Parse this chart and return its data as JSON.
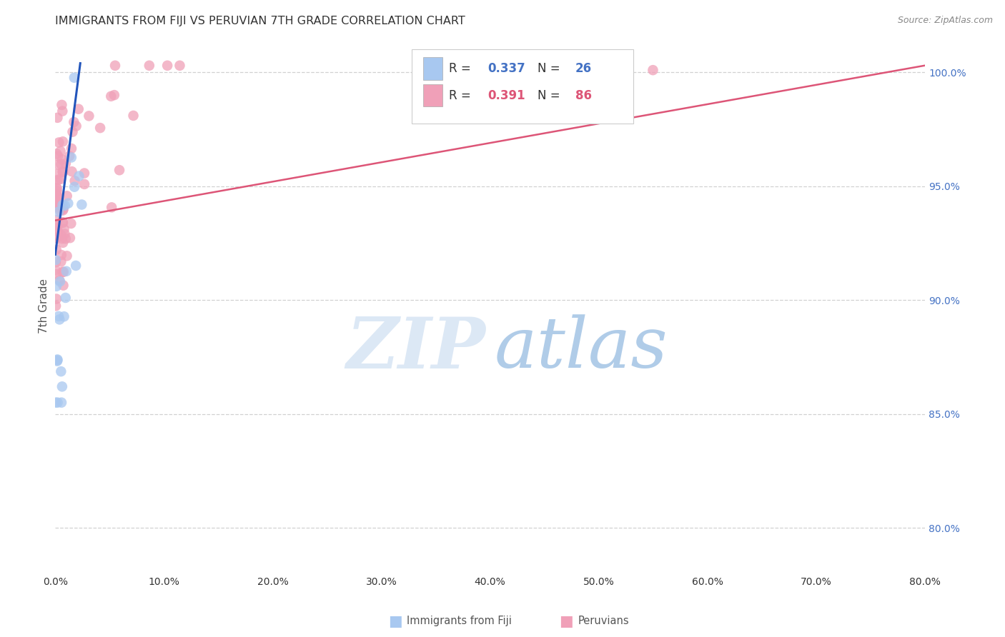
{
  "title": "IMMIGRANTS FROM FIJI VS PERUVIAN 7TH GRADE CORRELATION CHART",
  "source": "Source: ZipAtlas.com",
  "ylabel": "7th Grade",
  "ylabel_right_positions": [
    1.0,
    0.95,
    0.9,
    0.85,
    0.8
  ],
  "x_min": 0.0,
  "x_max": 0.8,
  "y_min": 0.78,
  "y_max": 1.015,
  "fiji_R": 0.337,
  "fiji_N": 26,
  "peru_R": 0.391,
  "peru_N": 86,
  "fiji_color": "#a8c8f0",
  "peru_color": "#f0a0b8",
  "fiji_line_color": "#2255bb",
  "peru_line_color": "#dd5577",
  "legend_fiji_label": "Immigrants from Fiji",
  "legend_peru_label": "Peruvians"
}
